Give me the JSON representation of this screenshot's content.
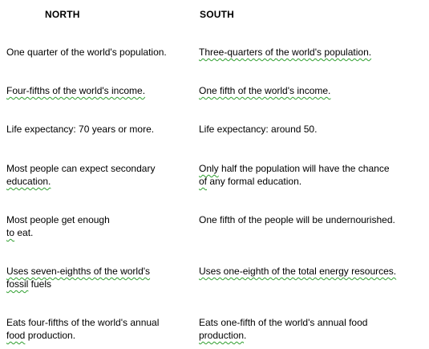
{
  "headers": {
    "north": "NORTH",
    "south": "SOUTH"
  },
  "rows": [
    {
      "north": {
        "lines": [
          {
            "plain": "One quarter of the world's population."
          }
        ]
      },
      "south": {
        "lines": [
          {
            "marked": "Three-quarters  of the world's population."
          }
        ]
      }
    },
    {
      "north": {
        "lines": [
          {
            "marked": "Four-fifths of the world's income."
          }
        ]
      },
      "south": {
        "lines": [
          {
            "marked": "One  fifth of the world's income."
          }
        ]
      }
    },
    {
      "north": {
        "lines": [
          {
            "plain": "Life expectancy: 70 years or more."
          }
        ]
      },
      "south": {
        "lines": [
          {
            "plain": "Life expectancy: around 50."
          }
        ]
      }
    },
    {
      "north": {
        "lines": [
          {
            "plain": "Most people can expect secondary"
          },
          {
            "marked": "education."
          }
        ]
      },
      "south": {
        "lines": [
          {
            "marked": "Only",
            "rest": " half the population will have the chance"
          },
          {
            "marked": "of",
            "rest": " any formal education."
          }
        ]
      }
    },
    {
      "north": {
        "lines": [
          {
            "plain": "Most people get enough"
          },
          {
            "marked": "to",
            "rest": " eat."
          }
        ]
      },
      "south": {
        "lines": [
          {
            "plain": "One fifth of the people will be undernourished."
          }
        ]
      }
    },
    {
      "north": {
        "lines": [
          {
            "marked": "Uses seven-eighths  of the world's"
          },
          {
            "marked": "fossil",
            "rest": " fuels"
          }
        ]
      },
      "south": {
        "lines": [
          {
            "marked": "Uses one-eighth of the total energy resources."
          }
        ]
      }
    },
    {
      "north": {
        "lines": [
          {
            "plain": "Eats four-fifths of the world's annual"
          },
          {
            "marked": "food",
            "rest": " production."
          }
        ]
      },
      "south": {
        "lines": [
          {
            "plain": "Eats one-fifth of the world's annual food"
          },
          {
            "marked": "production",
            "rest": "."
          }
        ]
      }
    }
  ]
}
